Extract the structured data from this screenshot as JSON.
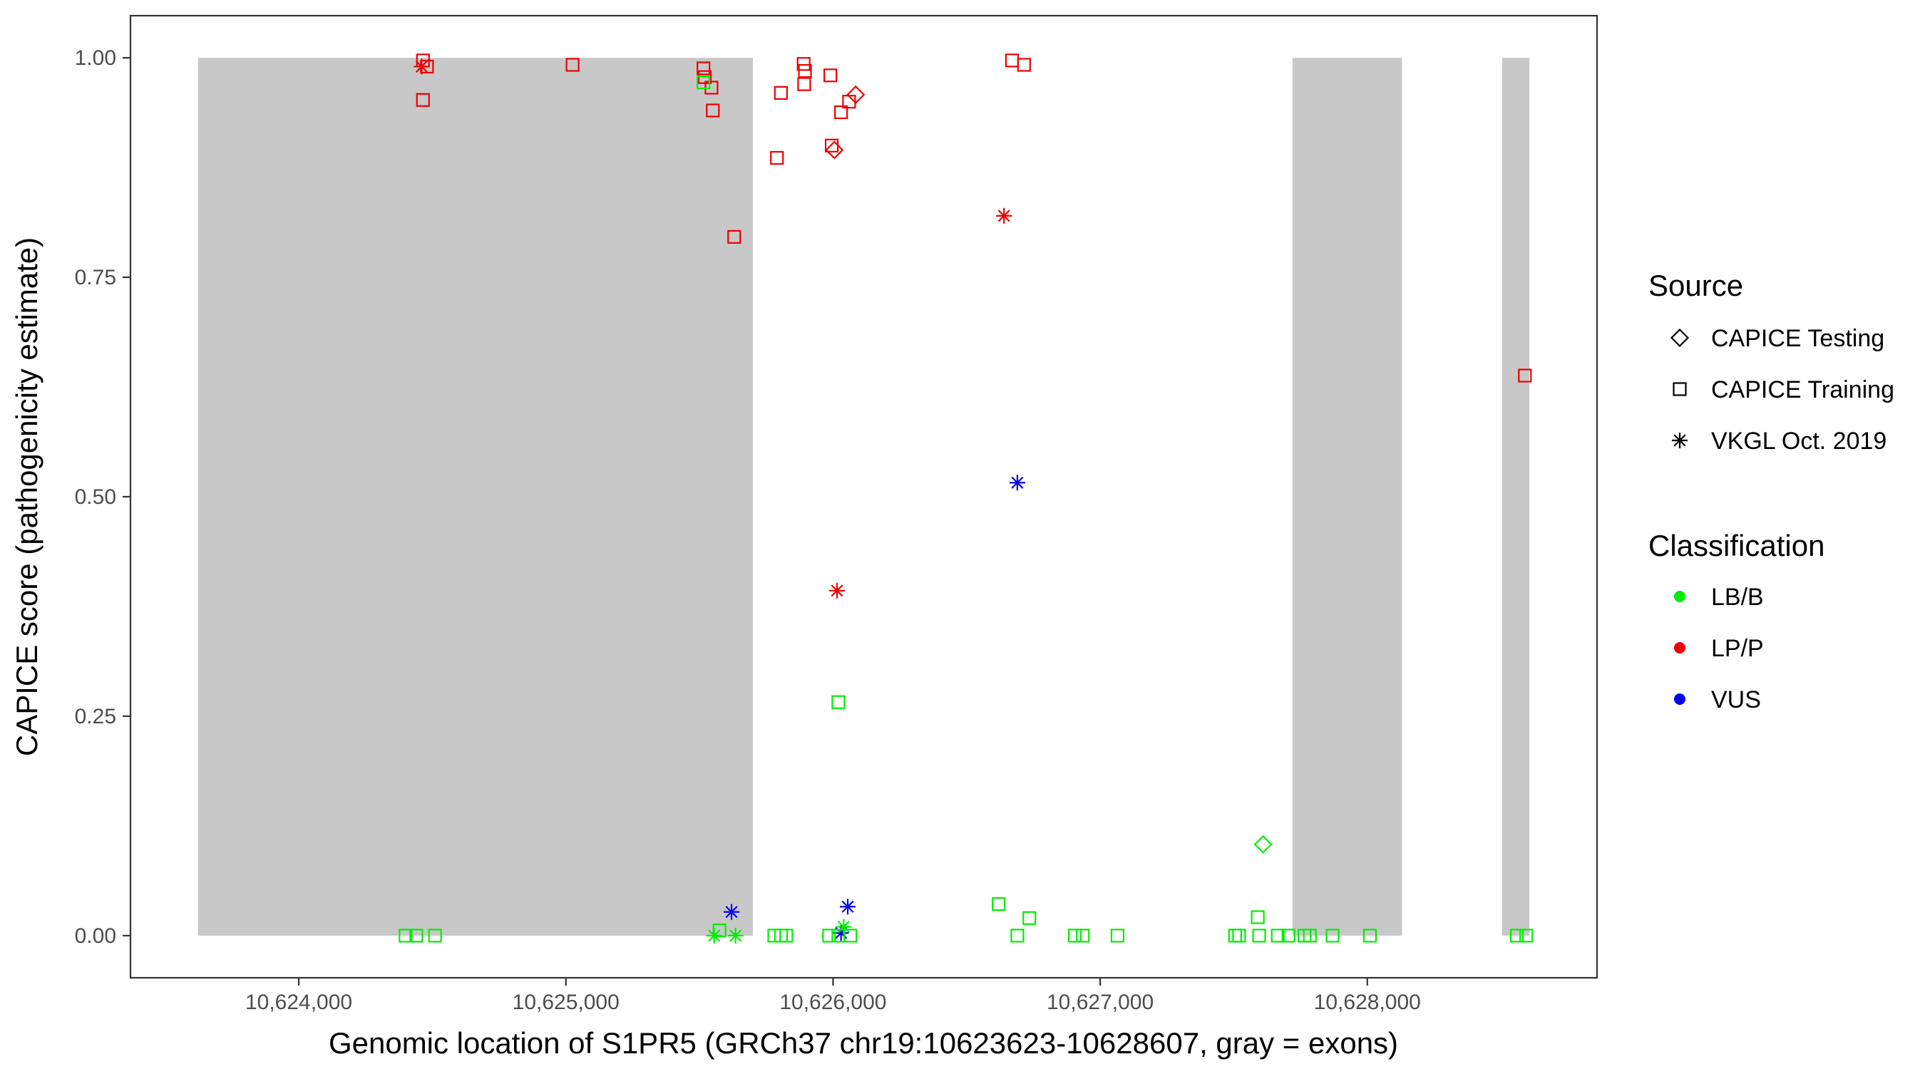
{
  "chart_data": {
    "type": "scatter",
    "xlabel": "Genomic location of S1PR5 (GRCh37 chr19:10623623-10628607, gray = exons)",
    "ylabel": "CAPICE score (pathogenicity estimate)",
    "xlim": [
      10623370,
      10628860
    ],
    "ylim": [
      -0.048,
      1.048
    ],
    "x_ticks": [
      10624000,
      10625000,
      10626000,
      10627000,
      10628000
    ],
    "x_tick_labels": [
      "10,624,000",
      "10,625,000",
      "10,626,000",
      "10,627,000",
      "10,628,000"
    ],
    "y_ticks": [
      0,
      0.25,
      0.5,
      0.75,
      1.0
    ],
    "y_tick_labels": [
      "0.00",
      "0.25",
      "0.50",
      "0.75",
      "1.00"
    ],
    "grid": false,
    "legend_position": "right",
    "exons": [
      {
        "start": 10623623,
        "end": 10625700
      },
      {
        "start": 10627720,
        "end": 10628130
      },
      {
        "start": 10628505,
        "end": 10628607
      }
    ],
    "legend": {
      "source_title": "Source",
      "sources": [
        {
          "key": "testing",
          "label": "CAPICE Testing",
          "shape": "diamond"
        },
        {
          "key": "training",
          "label": "CAPICE Training",
          "shape": "square"
        },
        {
          "key": "vkgl",
          "label": "VKGL Oct. 2019",
          "shape": "asterisk"
        }
      ],
      "classification_title": "Classification",
      "classes": [
        {
          "key": "LB/B",
          "label": "LB/B",
          "color": "#00ee00"
        },
        {
          "key": "LP/P",
          "label": "LP/P",
          "color": "#ee0000"
        },
        {
          "key": "VUS",
          "label": "VUS",
          "color": "#0000ee"
        }
      ]
    },
    "points": [
      {
        "x": 10624465,
        "y": 0.997,
        "s": "training",
        "c": "LP/P"
      },
      {
        "x": 10624480,
        "y": 0.99,
        "s": "training",
        "c": "LP/P"
      },
      {
        "x": 10624460,
        "y": 0.99,
        "s": "vkgl",
        "c": "LP/P"
      },
      {
        "x": 10624465,
        "y": 0.952,
        "s": "training",
        "c": "LP/P"
      },
      {
        "x": 10625025,
        "y": 0.992,
        "s": "training",
        "c": "LP/P"
      },
      {
        "x": 10625515,
        "y": 0.988,
        "s": "training",
        "c": "LP/P"
      },
      {
        "x": 10625520,
        "y": 0.978,
        "s": "training",
        "c": "LP/P"
      },
      {
        "x": 10625545,
        "y": 0.966,
        "s": "training",
        "c": "LP/P"
      },
      {
        "x": 10625550,
        "y": 0.94,
        "s": "training",
        "c": "LP/P"
      },
      {
        "x": 10625630,
        "y": 0.796,
        "s": "training",
        "c": "LP/P"
      },
      {
        "x": 10625790,
        "y": 0.886,
        "s": "training",
        "c": "LP/P"
      },
      {
        "x": 10625805,
        "y": 0.96,
        "s": "training",
        "c": "LP/P"
      },
      {
        "x": 10625890,
        "y": 0.993,
        "s": "training",
        "c": "LP/P"
      },
      {
        "x": 10625895,
        "y": 0.985,
        "s": "training",
        "c": "LP/P"
      },
      {
        "x": 10625892,
        "y": 0.97,
        "s": "training",
        "c": "LP/P"
      },
      {
        "x": 10625990,
        "y": 0.98,
        "s": "training",
        "c": "LP/P"
      },
      {
        "x": 10625995,
        "y": 0.9,
        "s": "training",
        "c": "LP/P"
      },
      {
        "x": 10626005,
        "y": 0.895,
        "s": "testing",
        "c": "LP/P"
      },
      {
        "x": 10626030,
        "y": 0.938,
        "s": "training",
        "c": "LP/P"
      },
      {
        "x": 10626060,
        "y": 0.95,
        "s": "training",
        "c": "LP/P"
      },
      {
        "x": 10626085,
        "y": 0.958,
        "s": "testing",
        "c": "LP/P"
      },
      {
        "x": 10626015,
        "y": 0.393,
        "s": "vkgl",
        "c": "LP/P"
      },
      {
        "x": 10626640,
        "y": 0.82,
        "s": "vkgl",
        "c": "LP/P"
      },
      {
        "x": 10626670,
        "y": 0.997,
        "s": "training",
        "c": "LP/P"
      },
      {
        "x": 10626715,
        "y": 0.992,
        "s": "training",
        "c": "LP/P"
      },
      {
        "x": 10628590,
        "y": 0.638,
        "s": "training",
        "c": "LP/P"
      },
      {
        "x": 10626690,
        "y": 0.516,
        "s": "vkgl",
        "c": "VUS"
      },
      {
        "x": 10625620,
        "y": 0.027,
        "s": "vkgl",
        "c": "VUS"
      },
      {
        "x": 10626055,
        "y": 0.033,
        "s": "vkgl",
        "c": "VUS"
      },
      {
        "x": 10626030,
        "y": 0.003,
        "s": "vkgl",
        "c": "VUS"
      },
      {
        "x": 10625515,
        "y": 0.972,
        "s": "training",
        "c": "LB/B"
      },
      {
        "x": 10626020,
        "y": 0.266,
        "s": "training",
        "c": "LB/B"
      },
      {
        "x": 10627610,
        "y": 0.104,
        "s": "testing",
        "c": "LB/B"
      },
      {
        "x": 10626620,
        "y": 0.036,
        "s": "training",
        "c": "LB/B"
      },
      {
        "x": 10626735,
        "y": 0.02,
        "s": "training",
        "c": "LB/B"
      },
      {
        "x": 10627590,
        "y": 0.021,
        "s": "training",
        "c": "LB/B"
      },
      {
        "x": 10625575,
        "y": 0.006,
        "s": "training",
        "c": "LB/B"
      },
      {
        "x": 10626040,
        "y": 0.01,
        "s": "vkgl",
        "c": "LB/B"
      },
      {
        "x": 10624400,
        "y": 0.0,
        "s": "training",
        "c": "LB/B"
      },
      {
        "x": 10624440,
        "y": 0.0,
        "s": "training",
        "c": "LB/B"
      },
      {
        "x": 10624510,
        "y": 0.0,
        "s": "training",
        "c": "LB/B"
      },
      {
        "x": 10625555,
        "y": 0.0,
        "s": "vkgl",
        "c": "LB/B"
      },
      {
        "x": 10625635,
        "y": 0.0,
        "s": "vkgl",
        "c": "LB/B"
      },
      {
        "x": 10625780,
        "y": 0.0,
        "s": "training",
        "c": "LB/B"
      },
      {
        "x": 10625805,
        "y": 0.0,
        "s": "training",
        "c": "LB/B"
      },
      {
        "x": 10625825,
        "y": 0.0,
        "s": "training",
        "c": "LB/B"
      },
      {
        "x": 10625985,
        "y": 0.0,
        "s": "training",
        "c": "LB/B"
      },
      {
        "x": 10626020,
        "y": 0.0,
        "s": "training",
        "c": "LB/B"
      },
      {
        "x": 10626065,
        "y": 0.0,
        "s": "training",
        "c": "LB/B"
      },
      {
        "x": 10626690,
        "y": 0.0,
        "s": "training",
        "c": "LB/B"
      },
      {
        "x": 10626905,
        "y": 0.0,
        "s": "training",
        "c": "LB/B"
      },
      {
        "x": 10626935,
        "y": 0.0,
        "s": "training",
        "c": "LB/B"
      },
      {
        "x": 10627065,
        "y": 0.0,
        "s": "training",
        "c": "LB/B"
      },
      {
        "x": 10627505,
        "y": 0.0,
        "s": "training",
        "c": "LB/B"
      },
      {
        "x": 10627520,
        "y": 0.0,
        "s": "training",
        "c": "LB/B"
      },
      {
        "x": 10627595,
        "y": 0.0,
        "s": "training",
        "c": "LB/B"
      },
      {
        "x": 10627665,
        "y": 0.0,
        "s": "training",
        "c": "LB/B"
      },
      {
        "x": 10627705,
        "y": 0.0,
        "s": "training",
        "c": "LB/B"
      },
      {
        "x": 10627765,
        "y": 0.0,
        "s": "training",
        "c": "LB/B"
      },
      {
        "x": 10627785,
        "y": 0.0,
        "s": "training",
        "c": "LB/B"
      },
      {
        "x": 10627870,
        "y": 0.0,
        "s": "training",
        "c": "LB/B"
      },
      {
        "x": 10628010,
        "y": 0.0,
        "s": "training",
        "c": "LB/B"
      },
      {
        "x": 10628560,
        "y": 0.0,
        "s": "training",
        "c": "LB/B"
      },
      {
        "x": 10628595,
        "y": 0.0,
        "s": "training",
        "c": "LB/B"
      }
    ]
  }
}
